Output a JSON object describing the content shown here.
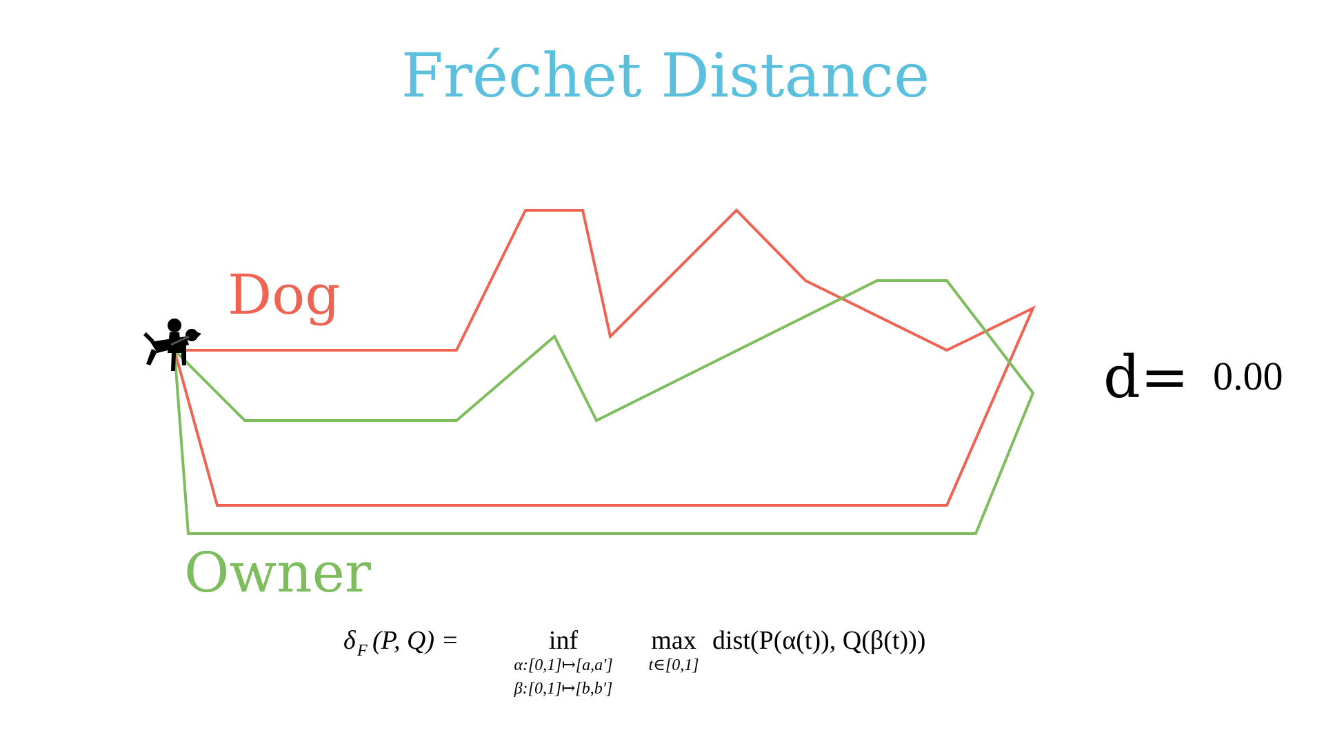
{
  "title": "Fréchet Distance",
  "labels": {
    "dog": "Dog",
    "owner": "Owner"
  },
  "distance": {
    "label": "d=",
    "value": "0.00"
  },
  "formula": {
    "lhs": "δ",
    "lhs_sub": "F",
    "lhs_args": "(P, Q) =",
    "inf": "inf",
    "inf_sub_1": "α:[0,1]↦[a,a′]",
    "inf_sub_2": "β:[0,1]↦[b,b′]",
    "max": "max",
    "max_sub": "t∈[0,1]",
    "rhs": "dist(P(α(t)), Q(β(t)))"
  },
  "icons": {
    "walker": "dog-walker-icon"
  },
  "colors": {
    "title": "#5bc0de",
    "dog": "#ee6352",
    "owner": "#7dbd5d",
    "text": "#000000"
  }
}
